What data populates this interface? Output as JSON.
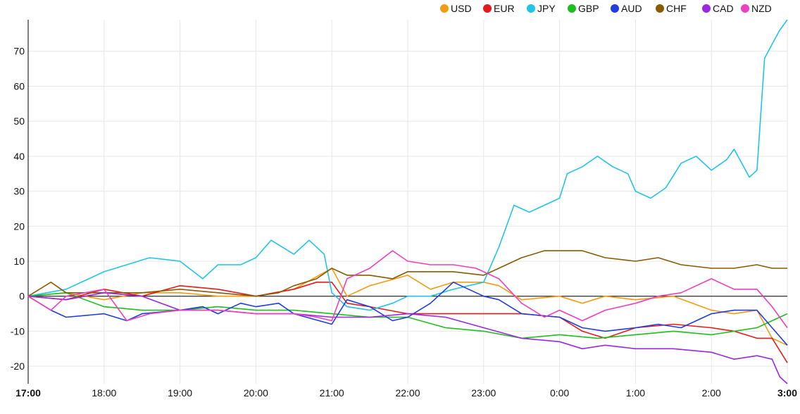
{
  "chart_data": {
    "type": "line",
    "legend_position": "top-right",
    "grid": true,
    "zero_line": true,
    "ylim": [
      -25,
      79
    ],
    "y_ticks": [
      -20,
      -10,
      0,
      10,
      20,
      30,
      40,
      50,
      60,
      70
    ],
    "y_tick_labels": [
      "-20",
      "-10",
      "0",
      "10",
      "20",
      "30",
      "40",
      "50",
      "60",
      "70"
    ],
    "x_range": [
      0,
      10
    ],
    "x_ticks": [
      0,
      1,
      2,
      3,
      4,
      5,
      6,
      7,
      8,
      9,
      10
    ],
    "x_tick_labels": [
      "17:00",
      "18:00",
      "19:00",
      "20:00",
      "21:00",
      "22:00",
      "23:00",
      "0:00",
      "1:00",
      "2:00",
      "3:00"
    ],
    "series": [
      {
        "name": "USD",
        "color": "#f39c12",
        "x": [
          0,
          0.5,
          1,
          1.5,
          2,
          2.5,
          3,
          3.5,
          4,
          4.2,
          4.5,
          5,
          5.3,
          5.6,
          6,
          6.2,
          6.5,
          7,
          7.3,
          7.6,
          8,
          8.5,
          9,
          9.3,
          9.6,
          9.8,
          10
        ],
        "values": [
          0,
          1,
          -1,
          1,
          1,
          0,
          0,
          2,
          8,
          0,
          3,
          6,
          2,
          4,
          4,
          3,
          -1,
          0,
          -2,
          0,
          -1,
          0,
          -4,
          -5,
          -4,
          -12,
          -14
        ]
      },
      {
        "name": "EUR",
        "color": "#e41a1c",
        "x": [
          0,
          0.5,
          1,
          1.5,
          2,
          2.5,
          3,
          3.5,
          3.8,
          4,
          4.2,
          4.5,
          5,
          5.5,
          6,
          6.5,
          7,
          7.3,
          7.6,
          8,
          8.5,
          9,
          9.3,
          9.6,
          9.8,
          10
        ],
        "values": [
          0,
          -1,
          2,
          0,
          3,
          2,
          0,
          2,
          4,
          4,
          -2,
          -3,
          -5,
          -5,
          -5,
          -5,
          -6,
          -10,
          -12,
          -9,
          -8,
          -9,
          -10,
          -12,
          -12,
          -19
        ]
      },
      {
        "name": "JPY",
        "color": "#1fc5e6",
        "x": [
          0,
          0.5,
          0.8,
          1,
          1.3,
          1.6,
          2,
          2.3,
          2.5,
          2.8,
          3,
          3.2,
          3.5,
          3.7,
          3.9,
          4,
          4.2,
          4.5,
          4.8,
          5,
          5.3,
          5.6,
          6,
          6.2,
          6.4,
          6.6,
          6.8,
          7,
          7.1,
          7.3,
          7.5,
          7.7,
          7.9,
          8,
          8.2,
          8.4,
          8.6,
          8.8,
          9,
          9.2,
          9.3,
          9.5,
          9.6,
          9.7,
          9.8,
          9.9,
          10
        ],
        "values": [
          0,
          2,
          5,
          7,
          9,
          11,
          10,
          5,
          9,
          9,
          11,
          16,
          12,
          16,
          12,
          1,
          -3,
          -4,
          -2,
          0,
          0,
          2,
          4,
          14,
          26,
          24,
          26,
          28,
          35,
          37,
          40,
          37,
          35,
          30,
          28,
          31,
          38,
          40,
          36,
          39,
          42,
          34,
          36,
          68,
          72,
          76,
          79
        ]
      },
      {
        "name": "GBP",
        "color": "#1dbf1d",
        "x": [
          0,
          0.5,
          1,
          1.5,
          2,
          2.5,
          3,
          3.5,
          4,
          4.5,
          5,
          5.5,
          6,
          6.5,
          7,
          7.5,
          8,
          8.5,
          9,
          9.3,
          9.6,
          9.8,
          10
        ],
        "values": [
          0,
          1,
          -3,
          -4,
          -4,
          -3,
          -4,
          -4,
          -5,
          -6,
          -6,
          -9,
          -10,
          -12,
          -11,
          -12,
          -11,
          -10,
          -11,
          -10,
          -9,
          -7,
          -5
        ]
      },
      {
        "name": "AUD",
        "color": "#1f3de0",
        "x": [
          0,
          0.3,
          0.5,
          1,
          1.3,
          1.5,
          2,
          2.3,
          2.5,
          2.8,
          3,
          3.3,
          3.5,
          4,
          4.2,
          4.5,
          4.8,
          5,
          5.3,
          5.6,
          6,
          6.2,
          6.5,
          7,
          7.3,
          7.6,
          8,
          8.3,
          8.6,
          9,
          9.3,
          9.6,
          9.8,
          10
        ],
        "values": [
          0,
          -4,
          -6,
          -5,
          -7,
          -5,
          -4,
          -3,
          -5,
          -2,
          -3,
          -2,
          -5,
          -8,
          -1,
          -3,
          -7,
          -6,
          -2,
          4,
          0,
          -1,
          -5,
          -6,
          -9,
          -10,
          -9,
          -8,
          -9,
          -5,
          -4,
          -4,
          -9,
          -14
        ]
      },
      {
        "name": "CHF",
        "color": "#8a5a00",
        "x": [
          0,
          0.3,
          0.5,
          1,
          1.5,
          2,
          2.5,
          3,
          3.3,
          3.5,
          3.8,
          4,
          4.2,
          4.5,
          4.8,
          5,
          5.3,
          5.6,
          6,
          6.2,
          6.5,
          6.8,
          7,
          7.3,
          7.6,
          8,
          8.3,
          8.6,
          9,
          9.3,
          9.6,
          9.8,
          10
        ],
        "values": [
          0,
          4,
          1,
          1,
          1,
          2,
          1,
          0,
          1,
          3,
          5,
          8,
          6,
          6,
          5,
          7,
          7,
          7,
          6,
          8,
          11,
          13,
          13,
          13,
          11,
          10,
          11,
          9,
          8,
          8,
          9,
          8,
          8
        ]
      },
      {
        "name": "CAD",
        "color": "#9b27e3",
        "x": [
          0,
          0.5,
          1,
          1.5,
          2,
          2.5,
          3,
          3.5,
          4,
          4.5,
          5,
          5.5,
          6,
          6.5,
          7,
          7.3,
          7.6,
          8,
          8.5,
          9,
          9.3,
          9.6,
          9.8,
          9.9,
          10
        ],
        "values": [
          0,
          -1,
          1,
          0,
          -4,
          -4,
          -5,
          -5,
          -6,
          -6,
          -5,
          -6,
          -9,
          -12,
          -13,
          -15,
          -14,
          -15,
          -15,
          -16,
          -18,
          -17,
          -18,
          -23,
          -25
        ]
      },
      {
        "name": "NZD",
        "color": "#ee3fbf",
        "x": [
          0,
          0.3,
          0.5,
          1,
          1.3,
          1.6,
          2,
          2.5,
          3,
          3.5,
          3.8,
          4,
          4.2,
          4.5,
          4.8,
          5,
          5.3,
          5.6,
          5.9,
          6.2,
          6.5,
          6.8,
          7,
          7.3,
          7.6,
          8,
          8.3,
          8.6,
          9,
          9.3,
          9.6,
          9.8,
          10
        ],
        "values": [
          0,
          -4,
          0,
          2,
          -7,
          -5,
          -4,
          -4,
          -5,
          -5,
          -6,
          -7,
          5,
          8,
          13,
          10,
          9,
          9,
          8,
          5,
          -2,
          -6,
          -4,
          -7,
          -4,
          -2,
          0,
          1,
          5,
          2,
          2,
          -3,
          -9
        ]
      }
    ]
  }
}
